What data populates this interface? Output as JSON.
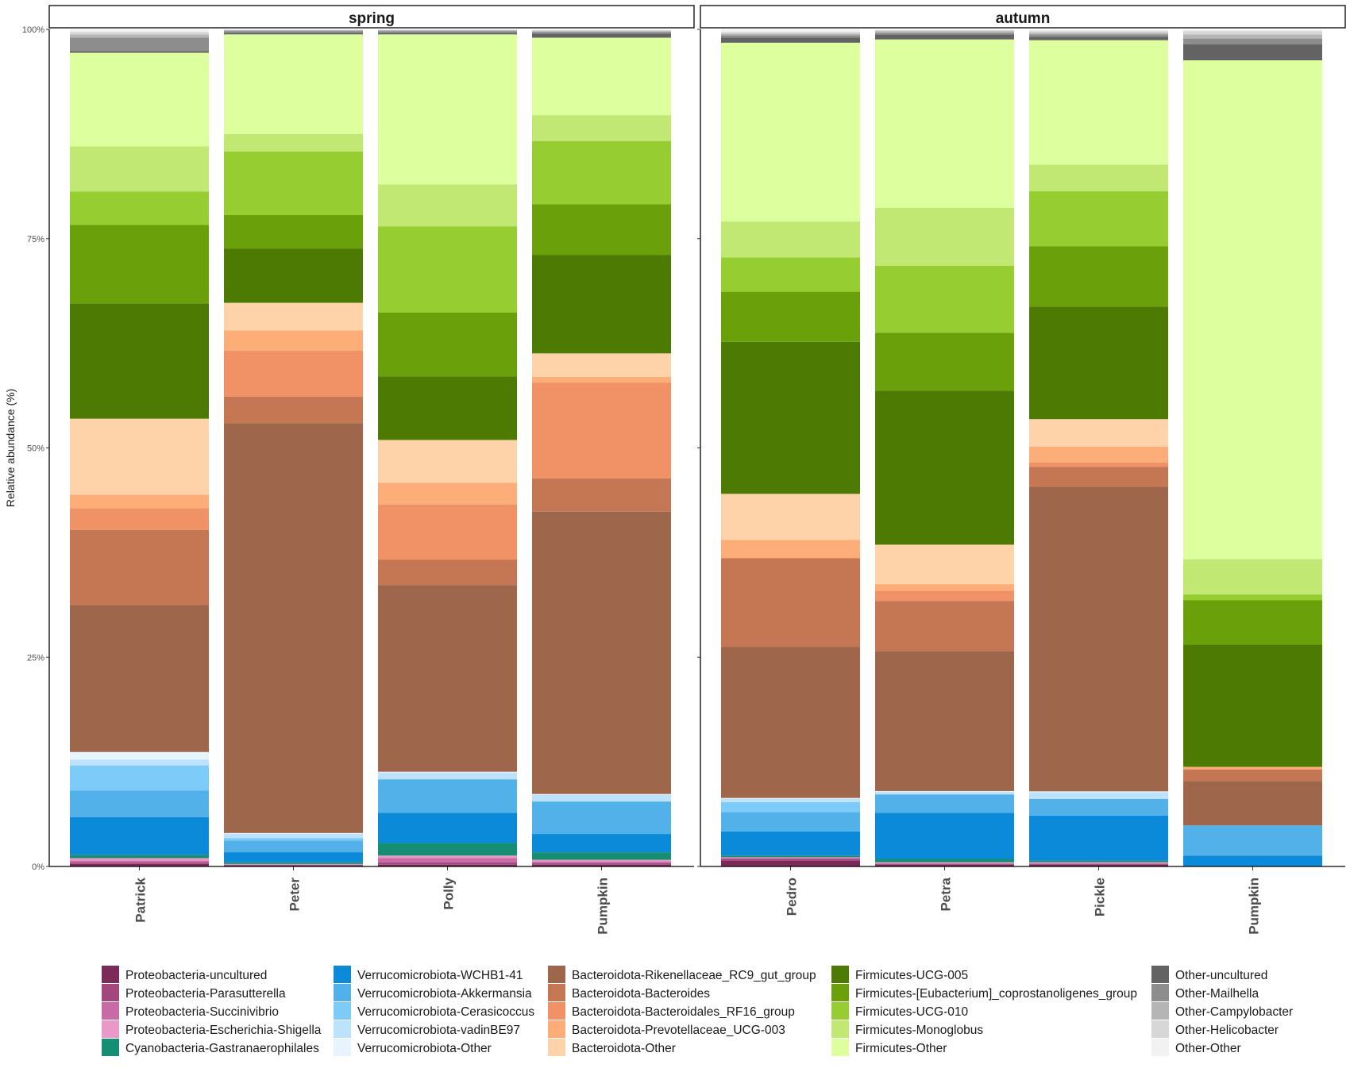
{
  "chart_data": {
    "type": "bar",
    "stacked": true,
    "ylabel": "Relative abundance (%)",
    "ylim": [
      0,
      100
    ],
    "y_ticks": [
      "0%",
      "25%",
      "50%",
      "75%",
      "100%"
    ],
    "grid": false,
    "legend_position": "bottom",
    "taxa": [
      {
        "name": "Proteobacteria-uncultured",
        "color": "#7b2b5a"
      },
      {
        "name": "Proteobacteria-Parasutterella",
        "color": "#a3477e"
      },
      {
        "name": "Proteobacteria-Succinivibrio",
        "color": "#c86aa6"
      },
      {
        "name": "Proteobacteria-Escherichia-Shigella",
        "color": "#e899c8"
      },
      {
        "name": "Cyanobacteria-Gastranaerophilales",
        "color": "#158e73"
      },
      {
        "name": "Verrucomicrobiota-WCHB1-41",
        "color": "#0a8ad8"
      },
      {
        "name": "Verrucomicrobiota-Akkermansia",
        "color": "#52b1e8"
      },
      {
        "name": "Verrucomicrobiota-Cerasicoccus",
        "color": "#7ccbf9"
      },
      {
        "name": "Verrucomicrobiota-vadinBE97",
        "color": "#bde2fb"
      },
      {
        "name": "Verrucomicrobiota-Other",
        "color": "#e8f4fd"
      },
      {
        "name": "Bacteroidota-Rikenellaceae_RC9_gut_group",
        "color": "#9e674c"
      },
      {
        "name": "Bacteroidota-Bacteroides",
        "color": "#c47752"
      },
      {
        "name": "Bacteroidota-Bacteroidales_RF16_group",
        "color": "#f09265"
      },
      {
        "name": "Bacteroidota-Prevotellaceae_UCG-003",
        "color": "#fdae78"
      },
      {
        "name": "Bacteroidota-Other",
        "color": "#fed3aa"
      },
      {
        "name": "Firmicutes-UCG-005",
        "color": "#4c7a03"
      },
      {
        "name": "Firmicutes-[Eubacterium]_coprostanoligenes_group",
        "color": "#6aa10a"
      },
      {
        "name": "Firmicutes-UCG-010",
        "color": "#96cd30"
      },
      {
        "name": "Firmicutes-Monoglobus",
        "color": "#c0e873"
      },
      {
        "name": "Firmicutes-Other",
        "color": "#deff9d"
      },
      {
        "name": "Other-uncultured",
        "color": "#636363"
      },
      {
        "name": "Other-Mailhella",
        "color": "#8d8d8d"
      },
      {
        "name": "Other-Campylobacter",
        "color": "#b5b5b5"
      },
      {
        "name": "Other-Helicobacter",
        "color": "#d7d7d7"
      },
      {
        "name": "Other-Other",
        "color": "#f2f2f2"
      }
    ],
    "panels": [
      {
        "title": "spring",
        "samples": [
          {
            "name": "Patrick",
            "values": [
              0.3,
              0.2,
              0.2,
              0.3,
              0.4,
              4.5,
              3.2,
              3.0,
              0.7,
              0.9,
              17.6,
              9.0,
              2.6,
              1.6,
              9.1,
              13.8,
              9.4,
              4.0,
              5.4,
              11.2,
              0.2,
              1.6,
              0.4,
              0.3,
              0.3
            ]
          },
          {
            "name": "Peter",
            "values": [
              0.1,
              0.1,
              0.05,
              0.05,
              0.2,
              1.2,
              1.4,
              0.3,
              0.5,
              0.1,
              49.0,
              3.2,
              5.5,
              2.4,
              3.3,
              6.5,
              4.0,
              7.6,
              2.1,
              11.9,
              0.2,
              0.2,
              0.1,
              0.05,
              0.05
            ]
          },
          {
            "name": "Polly",
            "values": [
              0.2,
              0.3,
              0.5,
              0.3,
              1.5,
              3.6,
              4.0,
              0,
              0.8,
              0.1,
              22.3,
              3.0,
              6.6,
              2.6,
              5.1,
              7.6,
              7.6,
              10.3,
              5.0,
              17.9,
              0.2,
              0.2,
              0.1,
              0.05,
              0.05
            ]
          },
          {
            "name": "Pumpkin",
            "values": [
              0.2,
              0.2,
              0.2,
              0.2,
              0.9,
              2.2,
              3.9,
              0,
              0.8,
              0.1,
              33.9,
              4.0,
              11.5,
              0.7,
              2.8,
              11.8,
              6.1,
              7.6,
              3.1,
              9.3,
              0.5,
              0.2,
              0.1,
              0.1,
              0.1
            ]
          }
        ]
      },
      {
        "title": "autumn",
        "samples": [
          {
            "name": "Pedro",
            "values": [
              0.7,
              0.2,
              0.1,
              0.1,
              0.2,
              2.9,
              2.3,
              1.2,
              0.4,
              0.1,
              18.1,
              10.6,
              0,
              2.2,
              5.5,
              18.2,
              6.0,
              4.1,
              4.3,
              21.4,
              0.6,
              0.3,
              0.2,
              0.2,
              0.3
            ]
          },
          {
            "name": "Petra",
            "values": [
              0.2,
              0.1,
              0.1,
              0.1,
              0.4,
              5.5,
              2.2,
              0,
              0.3,
              0.1,
              16.7,
              6.0,
              1.2,
              0.8,
              4.7,
              18.4,
              6.9,
              8.0,
              6.9,
              20.1,
              0.6,
              0.2,
              0.2,
              0.1,
              0.1
            ]
          },
          {
            "name": "Pickle",
            "values": [
              0.2,
              0.1,
              0.1,
              0.1,
              0.2,
              5.4,
              2.0,
              0,
              0.8,
              0.1,
              36.5,
              2.4,
              0.5,
              1.9,
              3.3,
              13.5,
              7.2,
              6.6,
              3.2,
              14.9,
              0.4,
              0.3,
              0.2,
              0.2,
              0.2
            ]
          },
          {
            "name": "Pumpkin",
            "values": [
              0,
              0,
              0,
              0,
              0,
              1.3,
              3.6,
              0,
              0,
              0,
              5.3,
              1.4,
              0,
              0.3,
              0,
              14.6,
              5.3,
              0.7,
              4.2,
              59.6,
              1.9,
              0.7,
              0.5,
              0.4,
              0.2
            ]
          }
        ]
      }
    ]
  }
}
